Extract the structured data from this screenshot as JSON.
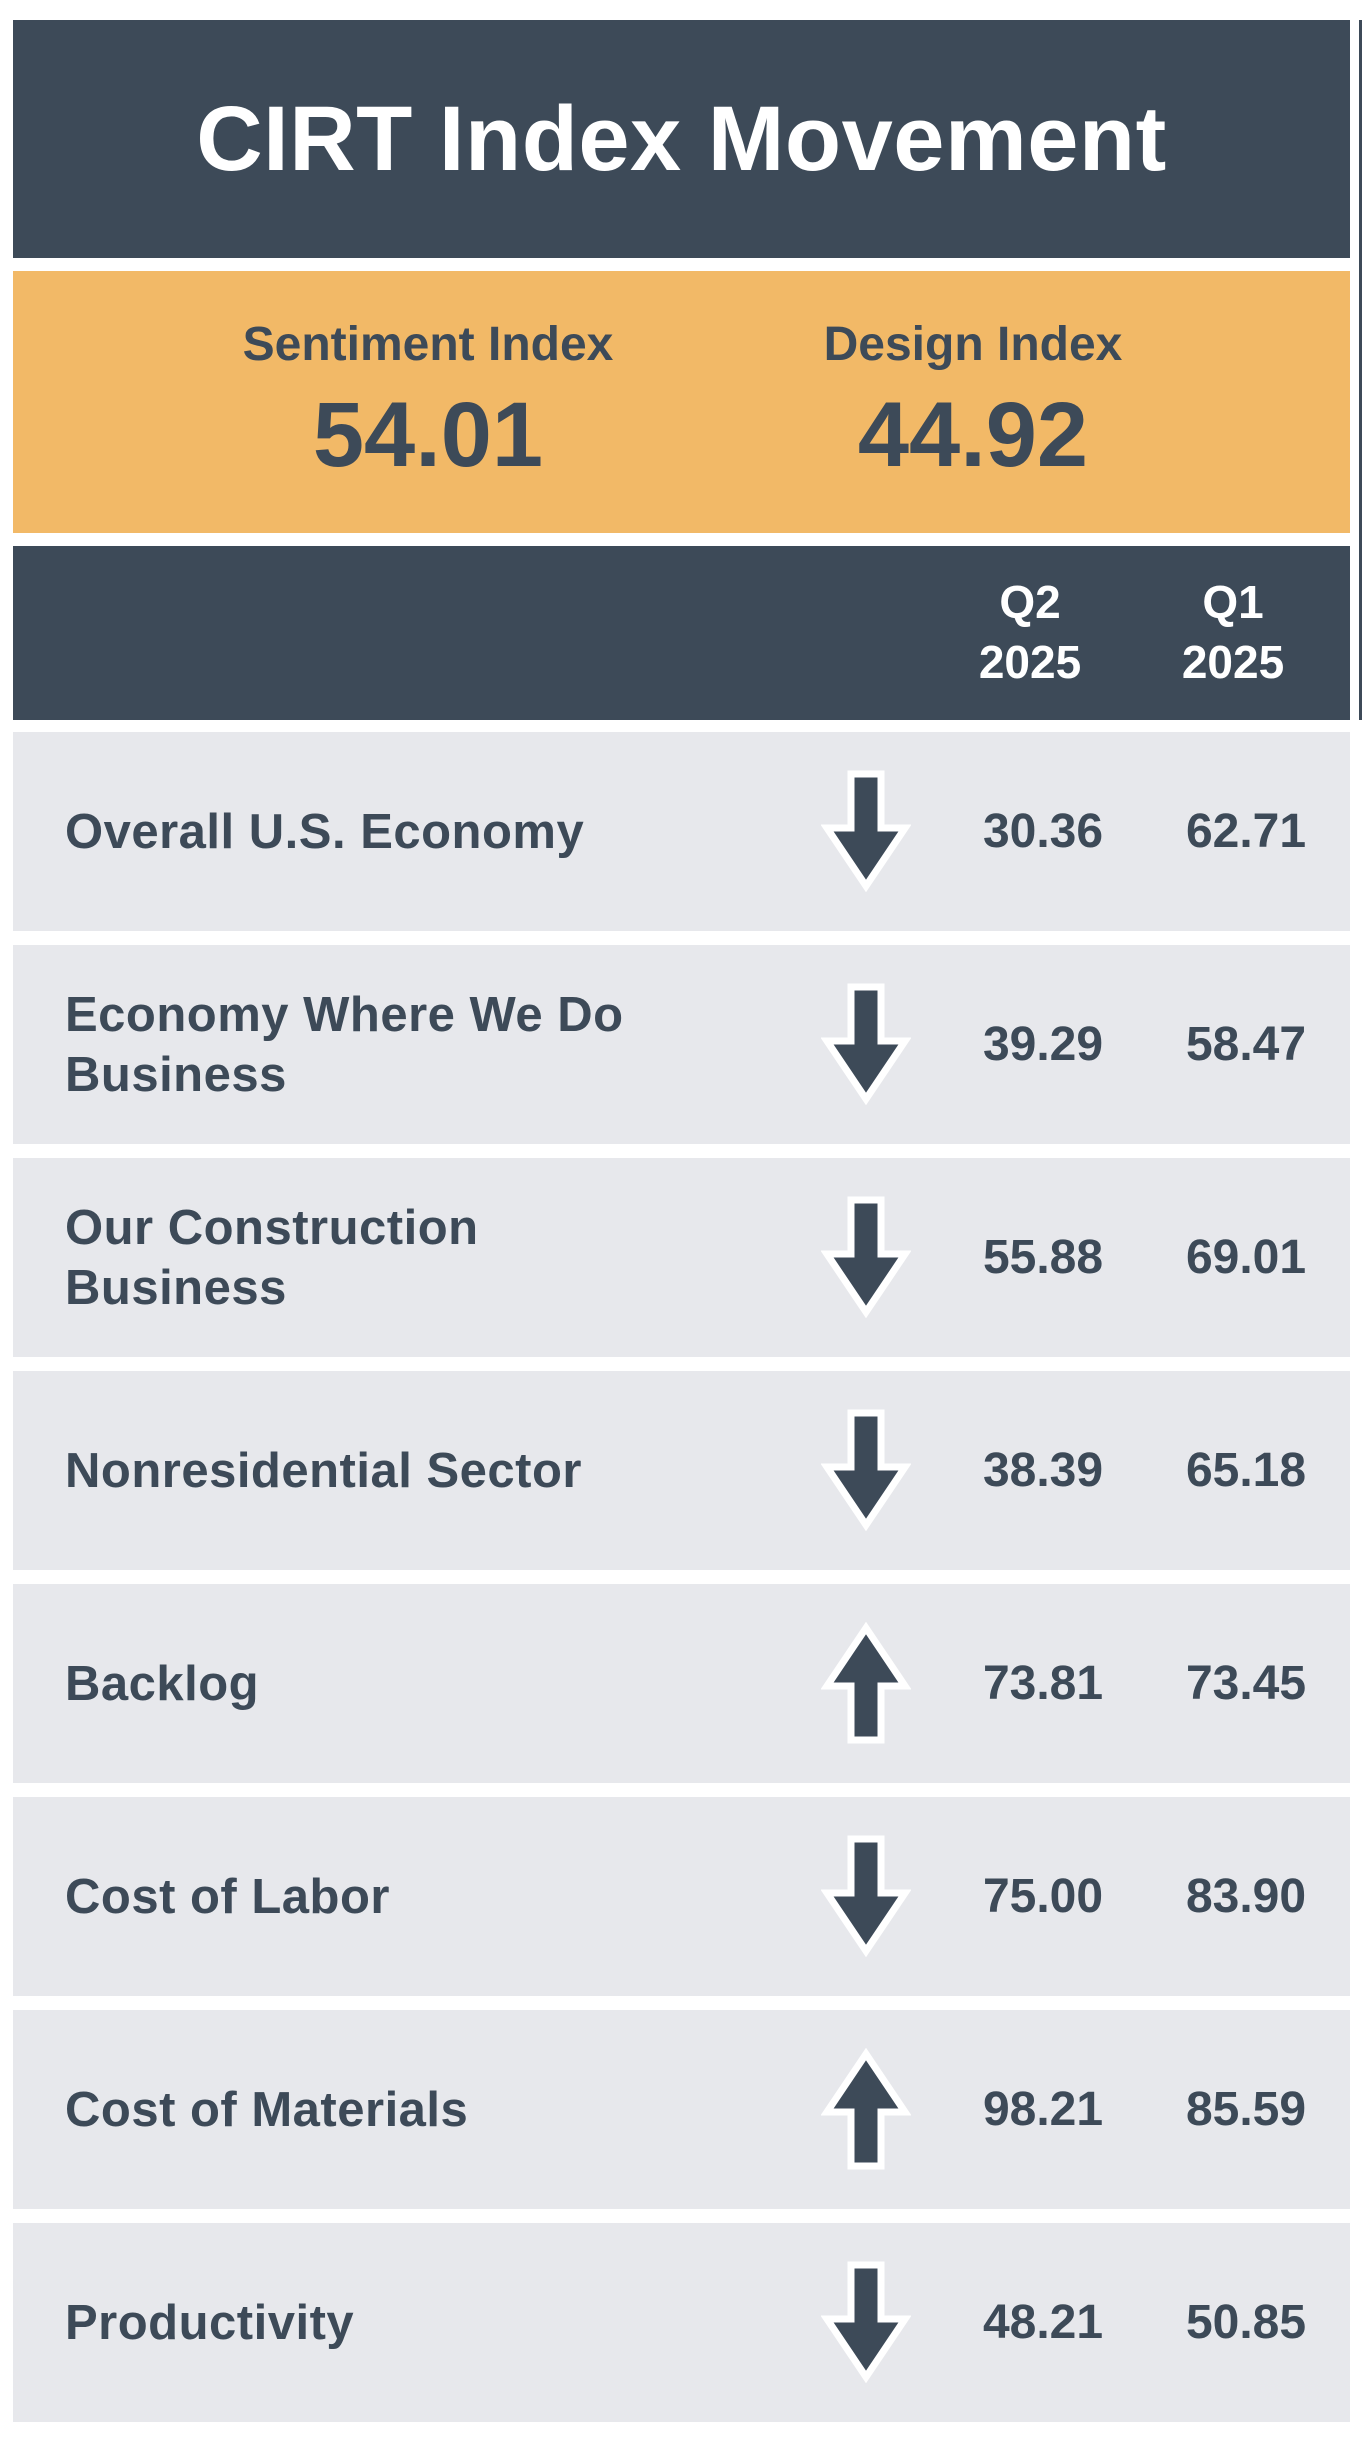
{
  "title": "CIRT Index Movement",
  "indices": [
    {
      "label": "Sentiment Index",
      "value": "54.01"
    },
    {
      "label": "Design Index",
      "value": "44.92"
    }
  ],
  "columns": [
    {
      "line1": "Q2",
      "line2": "2025"
    },
    {
      "line1": "Q1",
      "line2": "2025"
    }
  ],
  "colors": {
    "dark": "#3d4a58",
    "accent": "#f2b967",
    "row_bg": "#e7e8ec"
  },
  "chart_data": {
    "type": "table",
    "title": "CIRT Index Movement",
    "columns": [
      "Q2 2025",
      "Q1 2025"
    ],
    "rows": [
      {
        "label": "Overall U.S. Economy",
        "direction": "down",
        "q2": "30.36",
        "q1": "62.71"
      },
      {
        "label": "Economy Where We Do Business",
        "direction": "down",
        "q2": "39.29",
        "q1": "58.47"
      },
      {
        "label": "Our Construction Business",
        "direction": "down",
        "q2": "55.88",
        "q1": "69.01"
      },
      {
        "label": "Nonresidential Sector",
        "direction": "down",
        "q2": "38.39",
        "q1": "65.18"
      },
      {
        "label": "Backlog",
        "direction": "up",
        "q2": "73.81",
        "q1": "73.45"
      },
      {
        "label": "Cost of Labor",
        "direction": "down",
        "q2": "75.00",
        "q1": "83.90"
      },
      {
        "label": "Cost of Materials",
        "direction": "up",
        "q2": "98.21",
        "q1": "85.59"
      },
      {
        "label": "Productivity",
        "direction": "down",
        "q2": "48.21",
        "q1": "50.85"
      }
    ]
  }
}
